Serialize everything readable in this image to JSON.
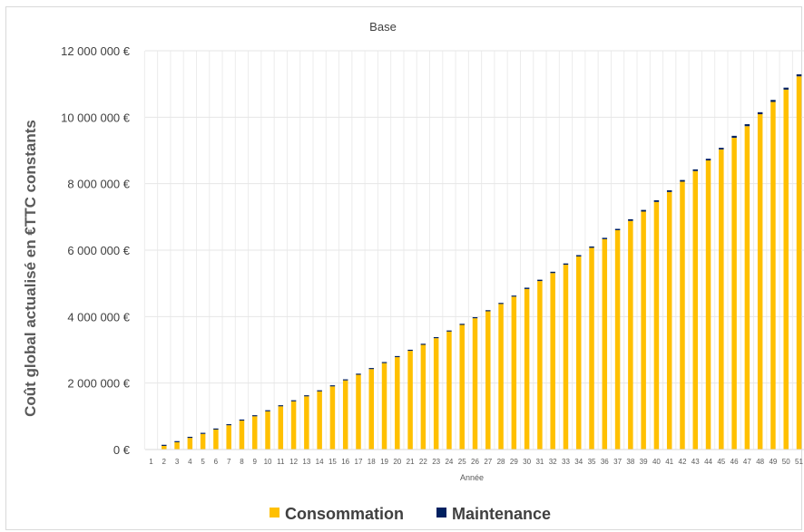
{
  "chart_data": {
    "type": "bar",
    "stacked": true,
    "title": "Base",
    "xlabel": "Année",
    "ylabel": "Coût global actualisé en €TTC constants",
    "ylim": [
      0,
      12000000
    ],
    "y_ticks": [
      "0 €",
      "2 000 000 €",
      "4 000 000 €",
      "6 000 000 €",
      "8 000 000 €",
      "10 000 000 €",
      "12 000 000 €"
    ],
    "y_tick_values": [
      0,
      2000000,
      4000000,
      6000000,
      8000000,
      10000000,
      12000000
    ],
    "grid": true,
    "legend_position": "bottom",
    "categories": [
      "1",
      "2",
      "3",
      "4",
      "5",
      "6",
      "7",
      "8",
      "9",
      "10",
      "11",
      "12",
      "13",
      "14",
      "15",
      "16",
      "17",
      "18",
      "19",
      "20",
      "21",
      "22",
      "23",
      "24",
      "25",
      "26",
      "27",
      "28",
      "29",
      "30",
      "31",
      "32",
      "33",
      "34",
      "35",
      "36",
      "37",
      "38",
      "39",
      "40",
      "41",
      "42",
      "43",
      "44",
      "45",
      "46",
      "47",
      "48",
      "49",
      "50",
      "51"
    ],
    "series": [
      {
        "name": "Consommation",
        "color": "#FFC000",
        "values": [
          0,
          110000,
          220000,
          350000,
          470000,
          600000,
          730000,
          870000,
          1000000,
          1150000,
          1300000,
          1450000,
          1600000,
          1750000,
          1900000,
          2080000,
          2250000,
          2420000,
          2600000,
          2780000,
          2970000,
          3150000,
          3350000,
          3550000,
          3750000,
          3950000,
          4160000,
          4380000,
          4600000,
          4830000,
          5070000,
          5310000,
          5560000,
          5810000,
          6070000,
          6330000,
          6600000,
          6880000,
          7160000,
          7450000,
          7750000,
          8060000,
          8380000,
          8700000,
          9030000,
          9380000,
          9730000,
          10090000,
          10460000,
          10830000,
          11230000
        ]
      },
      {
        "name": "Maintenance",
        "color": "#002060",
        "values": [
          0,
          10000,
          10000,
          10000,
          10000,
          10000,
          10000,
          10000,
          10000,
          10000,
          10000,
          10000,
          10000,
          20000,
          20000,
          20000,
          20000,
          20000,
          20000,
          20000,
          20000,
          30000,
          30000,
          30000,
          30000,
          30000,
          30000,
          30000,
          30000,
          40000,
          40000,
          40000,
          40000,
          40000,
          40000,
          40000,
          40000,
          50000,
          50000,
          50000,
          50000,
          50000,
          50000,
          50000,
          50000,
          60000,
          60000,
          60000,
          60000,
          60000,
          60000
        ]
      }
    ]
  }
}
